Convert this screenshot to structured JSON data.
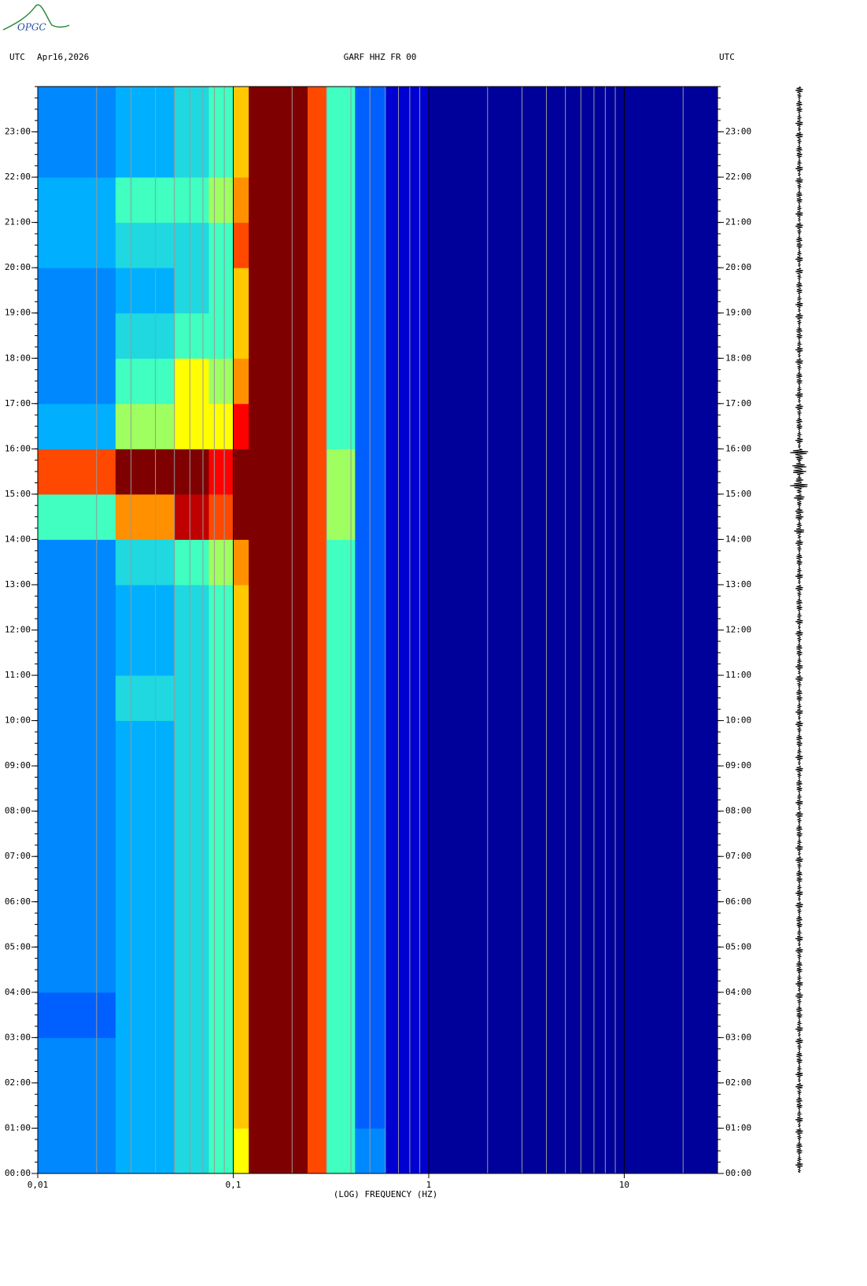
{
  "logo": "OPGC",
  "chart_data": {
    "type": "spectrogram",
    "left_label": "UTC",
    "date": "Apr16,2026",
    "title": "GARF HHZ FR 00",
    "right_label": "UTC",
    "xlabel": "(LOG) FREQUENCY (HZ)",
    "xscale": "log",
    "xlim": [
      0.01,
      30
    ],
    "xticks": [
      {
        "value": 0.01,
        "label": "0,01"
      },
      {
        "value": 0.1,
        "label": "0,1"
      },
      {
        "value": 1,
        "label": "1"
      },
      {
        "value": 10,
        "label": "10"
      }
    ],
    "ylim": [
      0,
      24
    ],
    "yticks": [
      {
        "value": 0,
        "label": "00:00"
      },
      {
        "value": 1,
        "label": "01:00"
      },
      {
        "value": 2,
        "label": "02:00"
      },
      {
        "value": 3,
        "label": "03:00"
      },
      {
        "value": 4,
        "label": "04:00"
      },
      {
        "value": 5,
        "label": "05:00"
      },
      {
        "value": 6,
        "label": "06:00"
      },
      {
        "value": 7,
        "label": "07:00"
      },
      {
        "value": 8,
        "label": "08:00"
      },
      {
        "value": 9,
        "label": "09:00"
      },
      {
        "value": 10,
        "label": "10:00"
      },
      {
        "value": 11,
        "label": "11:00"
      },
      {
        "value": 12,
        "label": "12:00"
      },
      {
        "value": 13,
        "label": "13:00"
      },
      {
        "value": 14,
        "label": "14:00"
      },
      {
        "value": 15,
        "label": "15:00"
      },
      {
        "value": 16,
        "label": "16:00"
      },
      {
        "value": 17,
        "label": "17:00"
      },
      {
        "value": 18,
        "label": "18:00"
      },
      {
        "value": 19,
        "label": "19:00"
      },
      {
        "value": 20,
        "label": "20:00"
      },
      {
        "value": 21,
        "label": "21:00"
      },
      {
        "value": 22,
        "label": "22:00"
      },
      {
        "value": 23,
        "label": "23:00"
      }
    ],
    "freq_bins": [
      0.01,
      0.025,
      0.05,
      0.075,
      0.1,
      0.12,
      0.24,
      0.3,
      0.42,
      0.6,
      1,
      30
    ],
    "time_bins": [
      0,
      1,
      2,
      3,
      4,
      5,
      6,
      7,
      8,
      9,
      10,
      11,
      12,
      13,
      14,
      15,
      16,
      17,
      18,
      19,
      20,
      21,
      22,
      23,
      24
    ],
    "power": [
      [
        3.5,
        4,
        4.5,
        5,
        6,
        9,
        7.5,
        5,
        3.5,
        1.5,
        0.5
      ],
      [
        3.5,
        4,
        4.5,
        5,
        6.5,
        9,
        7.5,
        5,
        3,
        1.5,
        0.5
      ],
      [
        3.5,
        4,
        4.5,
        5,
        6.5,
        9,
        7.5,
        5,
        3,
        1.5,
        0.5
      ],
      [
        3,
        4,
        4.5,
        5,
        6.5,
        9,
        7.5,
        5,
        3,
        1.5,
        0.5
      ],
      [
        3.5,
        4,
        4.5,
        5,
        6.5,
        9,
        7.5,
        5,
        3,
        1.5,
        0.5
      ],
      [
        3.5,
        4,
        4.5,
        5,
        6.5,
        9,
        7.5,
        5,
        3,
        1.5,
        0.5
      ],
      [
        3.5,
        4,
        4.5,
        5,
        6.5,
        9,
        7.5,
        5,
        3,
        1.5,
        0.5
      ],
      [
        3.5,
        4,
        4.5,
        5,
        6.5,
        9,
        7.5,
        5,
        3,
        1.5,
        0.5
      ],
      [
        3.5,
        4,
        4.5,
        5,
        6.5,
        9,
        7.5,
        5,
        3,
        1.5,
        0.5
      ],
      [
        3.5,
        4,
        4.5,
        5,
        6.5,
        9,
        7.5,
        5,
        3,
        1.5,
        0.5
      ],
      [
        3.5,
        4.5,
        4.5,
        5,
        6.5,
        9,
        7.5,
        5,
        3,
        1.5,
        0.5
      ],
      [
        3.5,
        4,
        4.5,
        5,
        6.5,
        9,
        7.5,
        5,
        3,
        1.5,
        0.5
      ],
      [
        3.5,
        4,
        4.5,
        5,
        6.5,
        9,
        7.5,
        5,
        3,
        1.5,
        0.5
      ],
      [
        3.5,
        4.5,
        5,
        5.5,
        7,
        9,
        7.5,
        5,
        3,
        1.5,
        0.5
      ],
      [
        5,
        7,
        8.5,
        7.5,
        9,
        9,
        7.5,
        5.5,
        3,
        1.5,
        0.5
      ],
      [
        7.5,
        9,
        9,
        8,
        9,
        9,
        7.5,
        5.5,
        3,
        1.5,
        0.5
      ],
      [
        4,
        5.5,
        6,
        6,
        8,
        9,
        7.5,
        5,
        3,
        1.5,
        0.5
      ],
      [
        3.5,
        5,
        6,
        5.5,
        7,
        9,
        7.5,
        5,
        3,
        1.5,
        0.5
      ],
      [
        3.5,
        4.5,
        5,
        5,
        6.5,
        9,
        7.5,
        5,
        3,
        1.5,
        0.5
      ],
      [
        3.5,
        4,
        4.5,
        5,
        6.5,
        9,
        7.5,
        5,
        3,
        1.5,
        0.5
      ],
      [
        4,
        4.5,
        4.5,
        5,
        7.5,
        9,
        7.5,
        5,
        3,
        1.5,
        0.5
      ],
      [
        4,
        5,
        5,
        5.5,
        7,
        9,
        7.5,
        5,
        3,
        1.5,
        0.5
      ],
      [
        3.5,
        4,
        4.5,
        5,
        6.5,
        9,
        7.5,
        5,
        3,
        1.5,
        0.5
      ],
      [
        3.5,
        4,
        4.5,
        5,
        6.5,
        9,
        7.5,
        5,
        3,
        1.5,
        0.5
      ]
    ],
    "trace_amplitude": [
      5,
      5,
      5,
      5,
      5,
      5,
      5,
      5,
      5,
      5,
      5,
      5,
      5,
      5,
      7,
      12,
      5,
      5,
      5,
      5,
      5,
      5,
      5,
      5
    ]
  }
}
